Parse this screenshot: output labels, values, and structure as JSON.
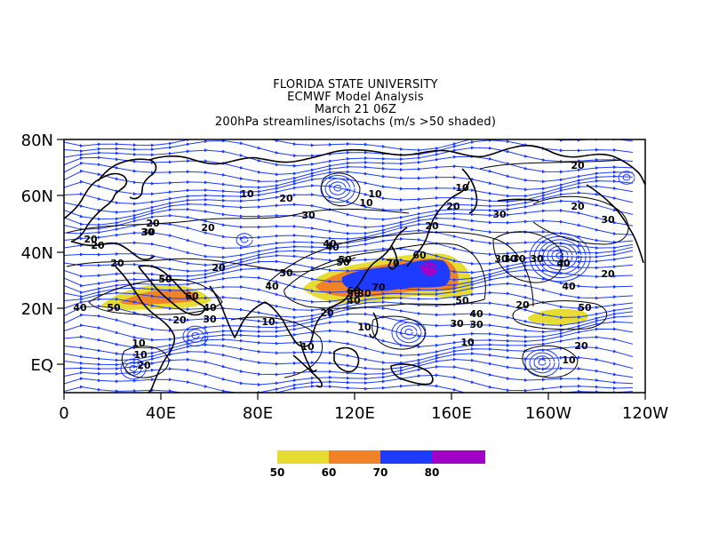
{
  "header": {
    "line1": "FLORIDA STATE UNIVERSITY",
    "line2": "ECMWF Model Analysis",
    "line3": "March 21 06Z",
    "line4": "200hPa streamlines/isotachs (m/s >50 shaded)"
  },
  "map": {
    "projection": "equirectangular",
    "lon_range": [
      0,
      240
    ],
    "lat_range": [
      -10,
      80
    ],
    "y_ticks": [
      "80N",
      "60N",
      "40N",
      "20N",
      "EQ"
    ],
    "x_ticks": [
      "0",
      "40E",
      "80E",
      "120E",
      "160E",
      "160W",
      "120W"
    ],
    "colors": {
      "streamline": "#1e3cff",
      "coastline": "#000000",
      "isotach": "#000000",
      "shade_50": "#e6dc32",
      "shade_60": "#f08228",
      "shade_70": "#1e3cff",
      "shade_80": "#a000c8"
    }
  },
  "colorbar": {
    "labels": [
      "50",
      "60",
      "70",
      "80"
    ]
  },
  "isotach_labels": [
    {
      "text": "10"
    },
    {
      "text": "20"
    },
    {
      "text": "30"
    },
    {
      "text": "10"
    },
    {
      "text": "10"
    },
    {
      "text": "10"
    },
    {
      "text": "20"
    },
    {
      "text": "30"
    },
    {
      "text": "20"
    },
    {
      "text": "30"
    },
    {
      "text": "20"
    },
    {
      "text": "40"
    },
    {
      "text": "30"
    },
    {
      "text": "30"
    },
    {
      "text": "20"
    },
    {
      "text": "20"
    },
    {
      "text": "30"
    },
    {
      "text": "40"
    },
    {
      "text": "50"
    },
    {
      "text": "60"
    },
    {
      "text": "70"
    },
    {
      "text": "60"
    },
    {
      "text": "70"
    },
    {
      "text": "50"
    },
    {
      "text": "30"
    },
    {
      "text": "40"
    },
    {
      "text": "30"
    },
    {
      "text": "30-30"
    },
    {
      "text": "40"
    },
    {
      "text": "20"
    },
    {
      "text": "40"
    },
    {
      "text": "50"
    },
    {
      "text": "60"
    },
    {
      "text": "20"
    },
    {
      "text": "40"
    },
    {
      "text": "30"
    },
    {
      "text": "20"
    },
    {
      "text": "10"
    },
    {
      "text": "10"
    },
    {
      "text": "10"
    },
    {
      "text": "10"
    },
    {
      "text": "20"
    },
    {
      "text": "50"
    },
    {
      "text": "40"
    },
    {
      "text": "30"
    },
    {
      "text": "20"
    },
    {
      "text": "30"
    },
    {
      "text": "20"
    },
    {
      "text": "10"
    },
    {
      "text": "30"
    },
    {
      "text": "20"
    },
    {
      "text": "10"
    },
    {
      "text": "50"
    },
    {
      "text": "20"
    },
    {
      "text": "10"
    },
    {
      "text": "20"
    },
    {
      "text": "40"
    },
    {
      "text": "50"
    },
    {
      "text": "40"
    },
    {
      "text": "30"
    },
    {
      "text": "20"
    },
    {
      "text": "20"
    }
  ]
}
